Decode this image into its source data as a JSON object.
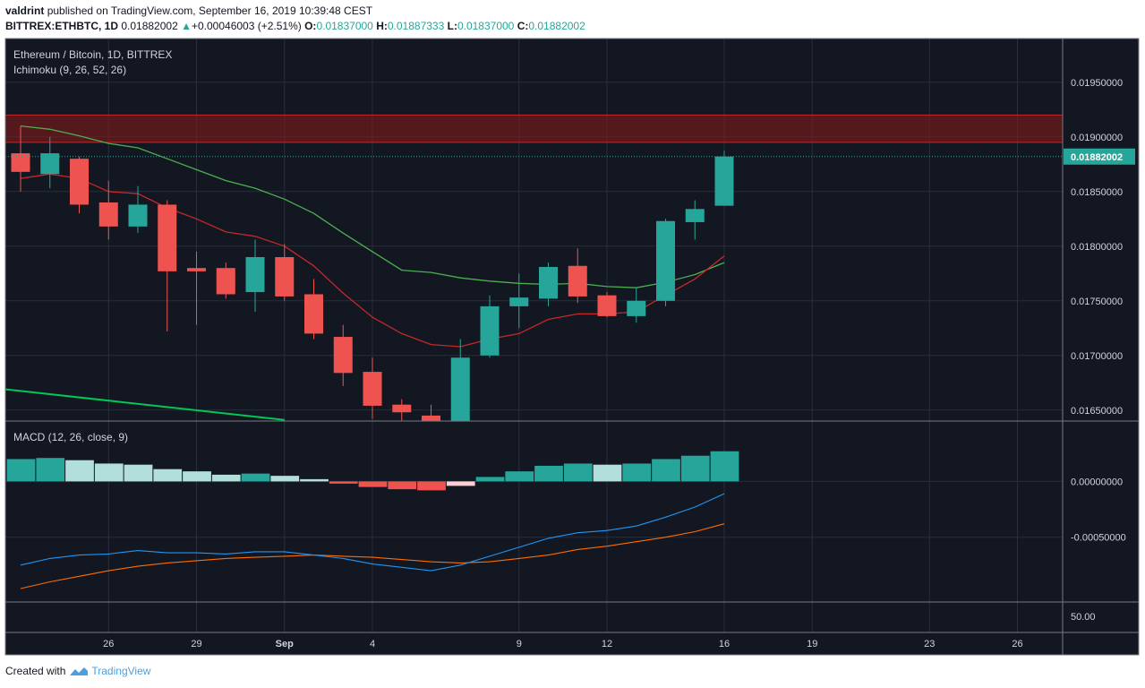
{
  "header": {
    "author": "valdrint",
    "published_text": "published on TradingView.com, September 16, 2019 10:39:48 CEST",
    "symbol": "BITTREX:ETHBTC, 1D",
    "last_price": "0.01882002",
    "change_arrow": "▲",
    "change": "+0.00046003 (+2.51%)",
    "o_label": "O:",
    "o_value": "0.01837000",
    "h_label": "H:",
    "h_value": "0.01887333",
    "l_label": "L:",
    "l_value": "0.01837000",
    "c_label": "C:",
    "c_value": "0.01882002"
  },
  "main_pane": {
    "title": "Ethereum / Bitcoin, 1D, BITTREX",
    "indicator": "Ichimoku (9, 26, 52, 26)"
  },
  "macd_pane": {
    "title": "MACD (12, 26, close, 9)"
  },
  "footer": {
    "created_with": "Created with",
    "brand": "TradingView"
  },
  "colors": {
    "background": "#131722",
    "grid": "#2a2e39",
    "up": "#26a69a",
    "down": "#ef5350",
    "conversion_line": "#c62828",
    "base_line": "#4caf50",
    "lagging_span": "#00c853",
    "resistance_zone": "#8b1a1a",
    "macd_line": "#2196f3",
    "signal_line": "#ff6d00",
    "hist_up_strong": "#26a69a",
    "hist_up_weak": "#b2dfdb",
    "hist_down_strong": "#ef5350",
    "hist_down_weak": "#ffcdd2"
  },
  "chart_data": {
    "type": "candlestick",
    "x_tick_labels": [
      {
        "label": "26",
        "day": 3
      },
      {
        "label": "29",
        "day": 6
      },
      {
        "label": "Sep",
        "day": 9
      },
      {
        "label": "4",
        "day": 12
      },
      {
        "label": "9",
        "day": 17
      },
      {
        "label": "12",
        "day": 20
      },
      {
        "label": "16",
        "day": 24
      },
      {
        "label": "19",
        "day": 27
      },
      {
        "label": "23",
        "day": 31
      },
      {
        "label": "26",
        "day": 34
      }
    ],
    "price_axis": {
      "range": [
        0.0164,
        0.0199
      ],
      "ticks": [
        "0.01650000",
        "0.01700000",
        "0.01750000",
        "0.01800000",
        "0.01850000",
        "0.01900000",
        "0.01950000"
      ],
      "last_price_label": "0.01882002",
      "last_price": 0.01882002
    },
    "resistance_zone": [
      0.01895,
      0.0192
    ],
    "candles": [
      {
        "day": 0,
        "o": 0.01885,
        "h": 0.0191,
        "l": 0.0185,
        "c": 0.01868
      },
      {
        "day": 1,
        "o": 0.01866,
        "h": 0.019,
        "l": 0.01853,
        "c": 0.01885
      },
      {
        "day": 2,
        "o": 0.0188,
        "h": 0.01882,
        "l": 0.0183,
        "c": 0.01838
      },
      {
        "day": 3,
        "o": 0.0184,
        "h": 0.0186,
        "l": 0.01806,
        "c": 0.01818
      },
      {
        "day": 4,
        "o": 0.01818,
        "h": 0.01855,
        "l": 0.01812,
        "c": 0.01838
      },
      {
        "day": 5,
        "o": 0.01838,
        "h": 0.01842,
        "l": 0.01722,
        "c": 0.01777
      },
      {
        "day": 6,
        "o": 0.0178,
        "h": 0.01795,
        "l": 0.01728,
        "c": 0.01777
      },
      {
        "day": 7,
        "o": 0.0178,
        "h": 0.01785,
        "l": 0.01752,
        "c": 0.01756
      },
      {
        "day": 8,
        "o": 0.01758,
        "h": 0.01806,
        "l": 0.0174,
        "c": 0.0179
      },
      {
        "day": 9,
        "o": 0.0179,
        "h": 0.01802,
        "l": 0.0175,
        "c": 0.01754
      },
      {
        "day": 10,
        "o": 0.01756,
        "h": 0.0177,
        "l": 0.01715,
        "c": 0.0172
      },
      {
        "day": 11,
        "o": 0.01717,
        "h": 0.01728,
        "l": 0.01672,
        "c": 0.01684
      },
      {
        "day": 12,
        "o": 0.01685,
        "h": 0.01698,
        "l": 0.01642,
        "c": 0.01654
      },
      {
        "day": 13,
        "o": 0.01655,
        "h": 0.0166,
        "l": 0.0164,
        "c": 0.01648
      },
      {
        "day": 14,
        "o": 0.01645,
        "h": 0.01655,
        "l": 0.01628,
        "c": 0.0164
      },
      {
        "day": 15,
        "o": 0.0164,
        "h": 0.01715,
        "l": 0.0163,
        "c": 0.01698
      },
      {
        "day": 16,
        "o": 0.017,
        "h": 0.01755,
        "l": 0.01698,
        "c": 0.01745
      },
      {
        "day": 17,
        "o": 0.01745,
        "h": 0.01775,
        "l": 0.01725,
        "c": 0.01753
      },
      {
        "day": 18,
        "o": 0.01752,
        "h": 0.01785,
        "l": 0.01745,
        "c": 0.01781
      },
      {
        "day": 19,
        "o": 0.01782,
        "h": 0.01798,
        "l": 0.01748,
        "c": 0.01754
      },
      {
        "day": 20,
        "o": 0.01755,
        "h": 0.01758,
        "l": 0.01735,
        "c": 0.01736
      },
      {
        "day": 21,
        "o": 0.01736,
        "h": 0.01762,
        "l": 0.0173,
        "c": 0.0175
      },
      {
        "day": 22,
        "o": 0.0175,
        "h": 0.01825,
        "l": 0.01745,
        "c": 0.01823
      },
      {
        "day": 23,
        "o": 0.01822,
        "h": 0.01842,
        "l": 0.01806,
        "c": 0.01834
      },
      {
        "day": 24,
        "o": 0.01837,
        "h": 0.01887333,
        "l": 0.01837,
        "c": 0.01882002
      }
    ],
    "ichimoku_conversion": [
      {
        "day": 0,
        "v": 0.01862
      },
      {
        "day": 1,
        "v": 0.01866
      },
      {
        "day": 2,
        "v": 0.01862
      },
      {
        "day": 3,
        "v": 0.0185
      },
      {
        "day": 4,
        "v": 0.01848
      },
      {
        "day": 5,
        "v": 0.01835
      },
      {
        "day": 6,
        "v": 0.01825
      },
      {
        "day": 7,
        "v": 0.01813
      },
      {
        "day": 8,
        "v": 0.01809
      },
      {
        "day": 9,
        "v": 0.018
      },
      {
        "day": 10,
        "v": 0.01782
      },
      {
        "day": 11,
        "v": 0.01757
      },
      {
        "day": 12,
        "v": 0.01735
      },
      {
        "day": 13,
        "v": 0.0172
      },
      {
        "day": 14,
        "v": 0.0171
      },
      {
        "day": 15,
        "v": 0.01708
      },
      {
        "day": 16,
        "v": 0.01715
      },
      {
        "day": 17,
        "v": 0.0172
      },
      {
        "day": 18,
        "v": 0.01733
      },
      {
        "day": 19,
        "v": 0.01738
      },
      {
        "day": 20,
        "v": 0.01738
      },
      {
        "day": 21,
        "v": 0.0174
      },
      {
        "day": 22,
        "v": 0.01755
      },
      {
        "day": 23,
        "v": 0.0177
      },
      {
        "day": 24,
        "v": 0.01791
      }
    ],
    "ichimoku_base": [
      {
        "day": 0,
        "v": 0.0191
      },
      {
        "day": 1,
        "v": 0.01907
      },
      {
        "day": 2,
        "v": 0.01901
      },
      {
        "day": 3,
        "v": 0.01894
      },
      {
        "day": 4,
        "v": 0.0189
      },
      {
        "day": 5,
        "v": 0.0188
      },
      {
        "day": 6,
        "v": 0.0187
      },
      {
        "day": 7,
        "v": 0.0186
      },
      {
        "day": 8,
        "v": 0.01853
      },
      {
        "day": 9,
        "v": 0.01843
      },
      {
        "day": 10,
        "v": 0.0183
      },
      {
        "day": 11,
        "v": 0.01812
      },
      {
        "day": 12,
        "v": 0.01795
      },
      {
        "day": 13,
        "v": 0.01778
      },
      {
        "day": 14,
        "v": 0.01776
      },
      {
        "day": 15,
        "v": 0.01771
      },
      {
        "day": 16,
        "v": 0.01768
      },
      {
        "day": 17,
        "v": 0.01766
      },
      {
        "day": 18,
        "v": 0.01765
      },
      {
        "day": 19,
        "v": 0.01766
      },
      {
        "day": 20,
        "v": 0.01763
      },
      {
        "day": 21,
        "v": 0.01762
      },
      {
        "day": 22,
        "v": 0.01767
      },
      {
        "day": 23,
        "v": 0.01774
      },
      {
        "day": 24,
        "v": 0.01785
      }
    ],
    "ichimoku_lagging": [
      {
        "day": -0.5,
        "v": 0.01669
      },
      {
        "day": 9,
        "v": 0.01641
      }
    ],
    "macd_axis": {
      "range": [
        -0.001,
        0.0003
      ],
      "ticks": [
        "0.00000000",
        "-0.00050000"
      ],
      "bottom_label": "50.00"
    },
    "macd_histogram": [
      {
        "day": 0,
        "v": 0.0002,
        "shade": "strong_up"
      },
      {
        "day": 1,
        "v": 0.00021,
        "shade": "strong_up"
      },
      {
        "day": 2,
        "v": 0.00019,
        "shade": "weak_up"
      },
      {
        "day": 3,
        "v": 0.00016,
        "shade": "weak_up"
      },
      {
        "day": 4,
        "v": 0.00015,
        "shade": "weak_up"
      },
      {
        "day": 5,
        "v": 0.00011,
        "shade": "weak_up"
      },
      {
        "day": 6,
        "v": 9e-05,
        "shade": "weak_up"
      },
      {
        "day": 7,
        "v": 6e-05,
        "shade": "weak_up"
      },
      {
        "day": 8,
        "v": 7e-05,
        "shade": "strong_up"
      },
      {
        "day": 9,
        "v": 5e-05,
        "shade": "weak_up"
      },
      {
        "day": 10,
        "v": 2e-05,
        "shade": "weak_up"
      },
      {
        "day": 11,
        "v": -2e-05,
        "shade": "strong_down"
      },
      {
        "day": 12,
        "v": -5e-05,
        "shade": "strong_down"
      },
      {
        "day": 13,
        "v": -7e-05,
        "shade": "strong_down"
      },
      {
        "day": 14,
        "v": -8e-05,
        "shade": "strong_down"
      },
      {
        "day": 15,
        "v": -4e-05,
        "shade": "weak_down"
      },
      {
        "day": 16,
        "v": 4e-05,
        "shade": "strong_up"
      },
      {
        "day": 17,
        "v": 9e-05,
        "shade": "strong_up"
      },
      {
        "day": 18,
        "v": 0.00014,
        "shade": "strong_up"
      },
      {
        "day": 19,
        "v": 0.00016,
        "shade": "strong_up"
      },
      {
        "day": 20,
        "v": 0.00015,
        "shade": "weak_up"
      },
      {
        "day": 21,
        "v": 0.00016,
        "shade": "strong_up"
      },
      {
        "day": 22,
        "v": 0.0002,
        "shade": "strong_up"
      },
      {
        "day": 23,
        "v": 0.00023,
        "shade": "strong_up"
      },
      {
        "day": 24,
        "v": 0.00027,
        "shade": "strong_up"
      }
    ],
    "macd_line": [
      {
        "day": 0,
        "v": -0.00075
      },
      {
        "day": 1,
        "v": -0.00069
      },
      {
        "day": 2,
        "v": -0.00066
      },
      {
        "day": 3,
        "v": -0.00065
      },
      {
        "day": 4,
        "v": -0.00062
      },
      {
        "day": 5,
        "v": -0.00064
      },
      {
        "day": 6,
        "v": -0.00064
      },
      {
        "day": 7,
        "v": -0.00065
      },
      {
        "day": 8,
        "v": -0.00063
      },
      {
        "day": 9,
        "v": -0.00063
      },
      {
        "day": 10,
        "v": -0.00066
      },
      {
        "day": 11,
        "v": -0.00069
      },
      {
        "day": 12,
        "v": -0.00074
      },
      {
        "day": 13,
        "v": -0.00077
      },
      {
        "day": 14,
        "v": -0.0008
      },
      {
        "day": 15,
        "v": -0.00075
      },
      {
        "day": 16,
        "v": -0.00067
      },
      {
        "day": 17,
        "v": -0.00059
      },
      {
        "day": 18,
        "v": -0.00051
      },
      {
        "day": 19,
        "v": -0.00046
      },
      {
        "day": 20,
        "v": -0.00044
      },
      {
        "day": 21,
        "v": -0.0004
      },
      {
        "day": 22,
        "v": -0.00032
      },
      {
        "day": 23,
        "v": -0.00023
      },
      {
        "day": 24,
        "v": -0.00011
      }
    ],
    "signal_line": [
      {
        "day": 0,
        "v": -0.00096
      },
      {
        "day": 1,
        "v": -0.0009
      },
      {
        "day": 2,
        "v": -0.00085
      },
      {
        "day": 3,
        "v": -0.0008
      },
      {
        "day": 4,
        "v": -0.00076
      },
      {
        "day": 5,
        "v": -0.00073
      },
      {
        "day": 6,
        "v": -0.00071
      },
      {
        "day": 7,
        "v": -0.00069
      },
      {
        "day": 8,
        "v": -0.00068
      },
      {
        "day": 9,
        "v": -0.00067
      },
      {
        "day": 10,
        "v": -0.00066
      },
      {
        "day": 11,
        "v": -0.00067
      },
      {
        "day": 12,
        "v": -0.00068
      },
      {
        "day": 13,
        "v": -0.0007
      },
      {
        "day": 14,
        "v": -0.00072
      },
      {
        "day": 15,
        "v": -0.00073
      },
      {
        "day": 16,
        "v": -0.00072
      },
      {
        "day": 17,
        "v": -0.00069
      },
      {
        "day": 18,
        "v": -0.00066
      },
      {
        "day": 19,
        "v": -0.00061
      },
      {
        "day": 20,
        "v": -0.00058
      },
      {
        "day": 21,
        "v": -0.00054
      },
      {
        "day": 22,
        "v": -0.0005
      },
      {
        "day": 23,
        "v": -0.00045
      },
      {
        "day": 24,
        "v": -0.00038
      }
    ]
  }
}
